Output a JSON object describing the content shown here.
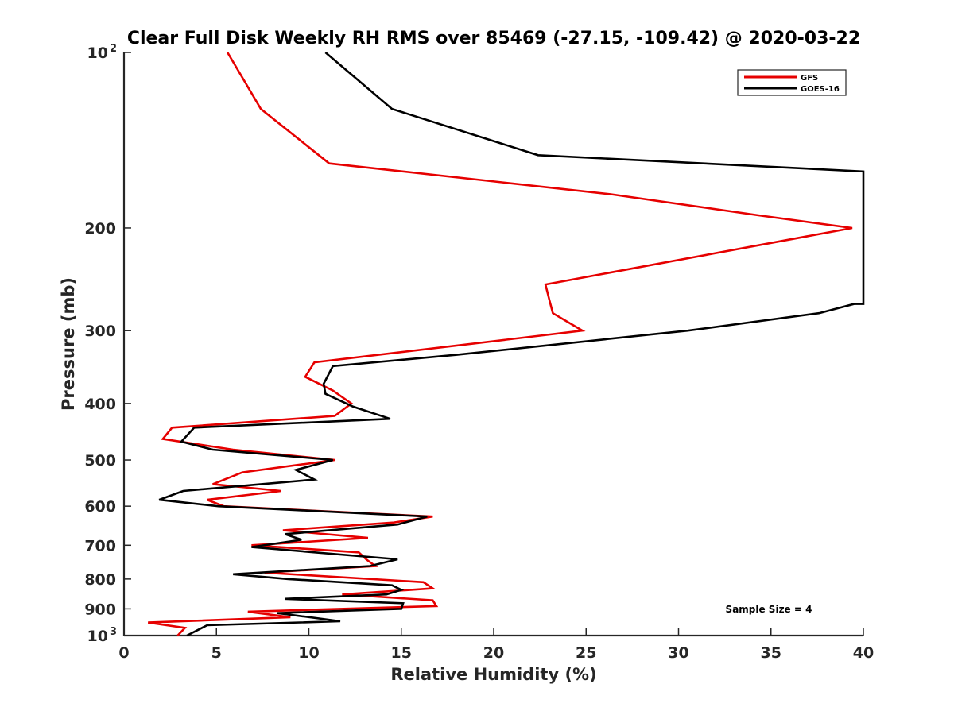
{
  "chart_data": {
    "type": "line",
    "title": "Clear Full Disk Weekly RH RMS over 85469 (-27.15, -109.42) @ 2020-03-22",
    "xlabel": "Relative Humidity (%)",
    "ylabel": "Pressure (mb)",
    "xlim": [
      0,
      40
    ],
    "ylim": [
      100,
      1000
    ],
    "y_scale": "log",
    "y_reversed": true,
    "x_ticks": [
      0,
      5,
      10,
      15,
      20,
      25,
      30,
      35,
      40
    ],
    "x_tick_labels": [
      "0",
      "5",
      "10",
      "15",
      "20",
      "25",
      "30",
      "35",
      "40"
    ],
    "y_ticks": [
      100,
      200,
      300,
      400,
      500,
      600,
      700,
      800,
      900,
      1000
    ],
    "y_tick_labels": [
      {
        "base": "10",
        "exp": "2"
      },
      {
        "base": "200",
        "exp": ""
      },
      {
        "base": "300",
        "exp": ""
      },
      {
        "base": "400",
        "exp": ""
      },
      {
        "base": "500",
        "exp": ""
      },
      {
        "base": "600",
        "exp": ""
      },
      {
        "base": "700",
        "exp": ""
      },
      {
        "base": "800",
        "exp": ""
      },
      {
        "base": "900",
        "exp": ""
      },
      {
        "base": "10",
        "exp": "3"
      }
    ],
    "grid": false,
    "legend_position": "top-right",
    "annotation": "Sample Size = 4",
    "series": [
      {
        "name": "GFS",
        "color": "#e60000",
        "points": [
          [
            5.6,
            100
          ],
          [
            7.4,
            125
          ],
          [
            11.1,
            155
          ],
          [
            26.3,
            175
          ],
          [
            34.2,
            190
          ],
          [
            39.4,
            200
          ],
          [
            22.8,
            250
          ],
          [
            23.0,
            265
          ],
          [
            23.2,
            280
          ],
          [
            24.8,
            300
          ],
          [
            10.3,
            340
          ],
          [
            9.8,
            360
          ],
          [
            11.3,
            380
          ],
          [
            12.3,
            400
          ],
          [
            11.4,
            420
          ],
          [
            2.6,
            440
          ],
          [
            2.1,
            460
          ],
          [
            5.9,
            480
          ],
          [
            11.4,
            500
          ],
          [
            6.4,
            525
          ],
          [
            4.8,
            550
          ],
          [
            8.5,
            565
          ],
          [
            4.5,
            585
          ],
          [
            5.4,
            600
          ],
          [
            16.7,
            625
          ],
          [
            14.6,
            640
          ],
          [
            8.6,
            660
          ],
          [
            13.2,
            680
          ],
          [
            6.9,
            700
          ],
          [
            12.7,
            720
          ],
          [
            13.1,
            740
          ],
          [
            13.6,
            760
          ],
          [
            7.6,
            780
          ],
          [
            16.2,
            810
          ],
          [
            16.7,
            830
          ],
          [
            11.8,
            850
          ],
          [
            16.7,
            870
          ],
          [
            16.9,
            890
          ],
          [
            6.7,
            910
          ],
          [
            9.0,
            930
          ],
          [
            1.3,
            950
          ],
          [
            3.3,
            970
          ],
          [
            2.9,
            1000
          ]
        ]
      },
      {
        "name": "GOES-16",
        "color": "#000000",
        "points": [
          [
            10.9,
            100
          ],
          [
            14.5,
            125
          ],
          [
            22.4,
            150
          ],
          [
            40.0,
            160
          ],
          [
            40.0,
            270
          ],
          [
            39.5,
            270
          ],
          [
            37.6,
            280
          ],
          [
            30.5,
            300
          ],
          [
            18.0,
            330
          ],
          [
            11.3,
            345
          ],
          [
            10.8,
            370
          ],
          [
            10.9,
            385
          ],
          [
            12.4,
            405
          ],
          [
            14.4,
            425
          ],
          [
            3.8,
            440
          ],
          [
            3.1,
            465
          ],
          [
            4.8,
            480
          ],
          [
            11.3,
            500
          ],
          [
            9.3,
            520
          ],
          [
            10.3,
            540
          ],
          [
            3.2,
            565
          ],
          [
            1.9,
            585
          ],
          [
            5.1,
            600
          ],
          [
            16.4,
            625
          ],
          [
            14.8,
            645
          ],
          [
            8.7,
            670
          ],
          [
            9.6,
            685
          ],
          [
            6.9,
            705
          ],
          [
            14.8,
            740
          ],
          [
            13.3,
            760
          ],
          [
            5.9,
            785
          ],
          [
            8.9,
            800
          ],
          [
            14.5,
            820
          ],
          [
            15.0,
            835
          ],
          [
            14.2,
            850
          ],
          [
            8.7,
            865
          ],
          [
            15.1,
            880
          ],
          [
            15.0,
            900
          ],
          [
            8.3,
            915
          ],
          [
            11.7,
            945
          ],
          [
            4.5,
            960
          ],
          [
            3.4,
            1000
          ]
        ]
      }
    ]
  }
}
